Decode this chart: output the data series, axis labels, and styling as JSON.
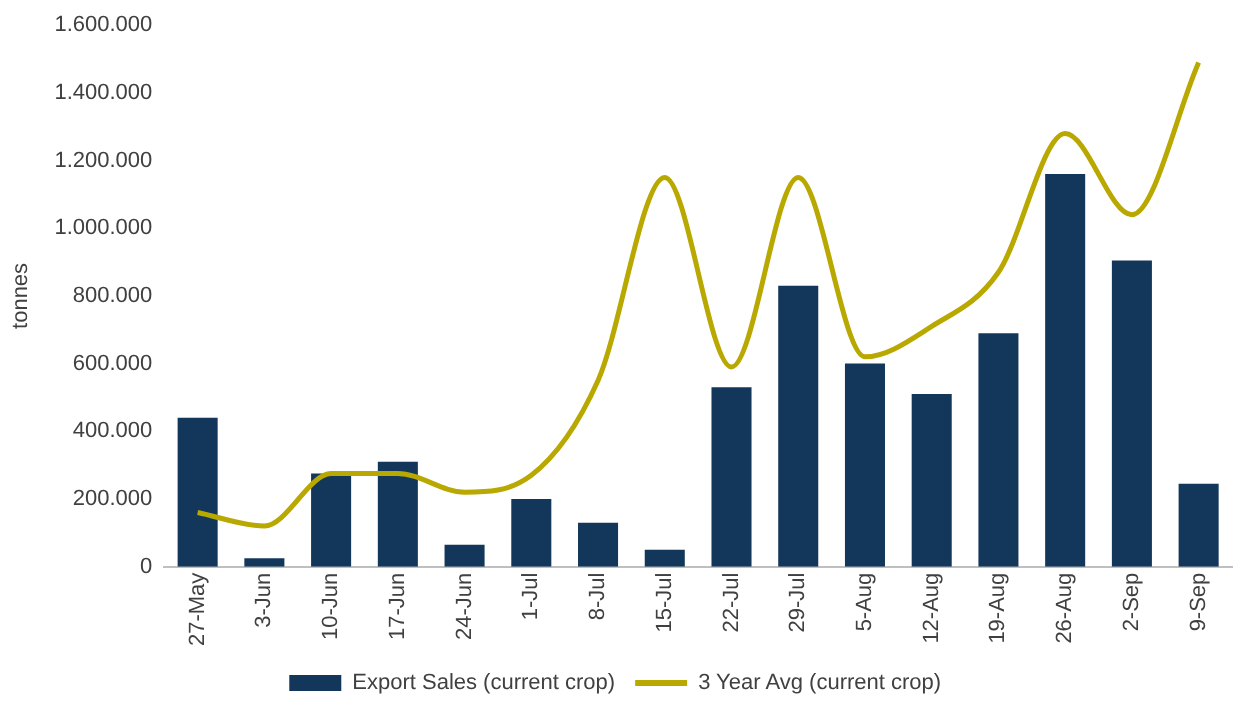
{
  "chart_data": {
    "type": "bar",
    "ylabel": "tonnes",
    "categories": [
      "27-May",
      "3-Jun",
      "10-Jun",
      "17-Jun",
      "24-Jun",
      "1-Jul",
      "8-Jul",
      "15-Jul",
      "22-Jul",
      "29-Jul",
      "5-Aug",
      "12-Aug",
      "19-Aug",
      "26-Aug",
      "2-Sep",
      "9-Sep"
    ],
    "series": [
      {
        "name": "Export Sales (current crop)",
        "color": "#12375a",
        "values": [
          440000,
          25000,
          275000,
          310000,
          65000,
          200000,
          130000,
          50000,
          530000,
          830000,
          600000,
          510000,
          690000,
          1160000,
          905000,
          245000
        ]
      },
      {
        "name": "3 Year Avg (current crop)",
        "type": "line",
        "color": "#b8a800",
        "values": [
          160000,
          120000,
          275000,
          275000,
          220000,
          270000,
          550000,
          1150000,
          590000,
          1150000,
          620000,
          710000,
          870000,
          1280000,
          1040000,
          1490000
        ]
      }
    ],
    "ylim": [
      0,
      1600000
    ],
    "yticks": [
      {
        "value": 0,
        "label": "0"
      },
      {
        "value": 200000,
        "label": "200.000"
      },
      {
        "value": 400000,
        "label": "400.000"
      },
      {
        "value": 600000,
        "label": "600.000"
      },
      {
        "value": 800000,
        "label": "800.000"
      },
      {
        "value": 1000000,
        "label": "1.000.000"
      },
      {
        "value": 1200000,
        "label": "1.200.000"
      },
      {
        "value": 1400000,
        "label": "1.400.000"
      },
      {
        "value": 1600000,
        "label": "1.600.000"
      }
    ],
    "grid": false,
    "legend": "bottom",
    "marker": "none"
  }
}
